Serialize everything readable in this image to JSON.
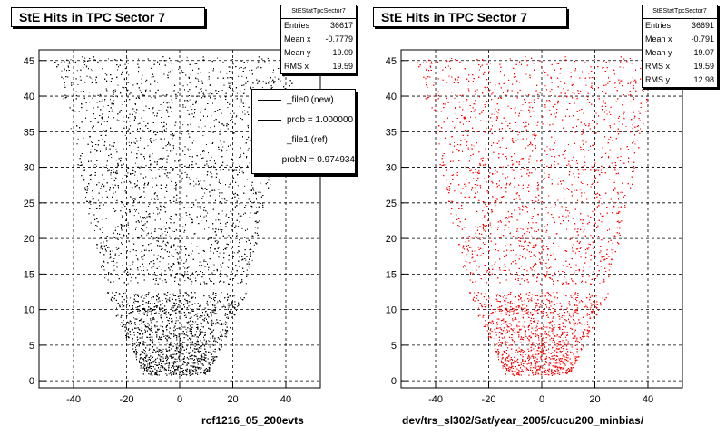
{
  "chart_data": [
    {
      "type": "scatter",
      "title": "StE Hits in TPC Sector 7",
      "caption": "rcf1216_05_200evts",
      "color": "#000000",
      "xlim": [
        -53,
        53
      ],
      "ylim": [
        -1,
        46.5
      ],
      "grid": true,
      "x_ticks": [
        -40,
        -20,
        0,
        20,
        40
      ],
      "y_ticks": [
        0,
        5,
        10,
        15,
        20,
        25,
        30,
        35,
        40,
        45
      ],
      "stats": {
        "name": "StEStatTpcSector7",
        "rows": [
          {
            "label": "Entries",
            "value": "36617"
          },
          {
            "label": "Mean x",
            "value": "-0.7779"
          },
          {
            "label": "Mean y",
            "value": "19.09"
          },
          {
            "label": "RMS x",
            "value": "19.59"
          }
        ]
      },
      "legend": {
        "placement": "top-right",
        "entries": [
          {
            "label": "_file0 (new)",
            "color": "#000000"
          },
          {
            "label": "prob = 1.000000",
            "color": "#000000"
          },
          {
            "label": "_file1 (ref)",
            "color": "#ff0000"
          },
          {
            "label": "probN = 0.974934",
            "color": "#ff0000"
          }
        ]
      }
    },
    {
      "type": "scatter",
      "title": "StE Hits in TPC Sector 7",
      "caption": "dev/trs_sl302/Sat/year_2005/cucu200_minbias/",
      "color": "#ff0000",
      "xlim": [
        -53,
        53
      ],
      "ylim": [
        -1,
        46.5
      ],
      "grid": true,
      "x_ticks": [
        -40,
        -20,
        0,
        20,
        40
      ],
      "y_ticks": [
        0,
        5,
        10,
        15,
        20,
        25,
        30,
        35,
        40,
        45
      ],
      "stats": {
        "name": "StEStatTpcSector7",
        "rows": [
          {
            "label": "Entries",
            "value": "36691"
          },
          {
            "label": "Mean x",
            "value": "-0.791"
          },
          {
            "label": "Mean y",
            "value": "19.07"
          },
          {
            "label": "RMS x",
            "value": "19.59"
          },
          {
            "label": "RMS y",
            "value": "12.98"
          }
        ]
      }
    }
  ]
}
